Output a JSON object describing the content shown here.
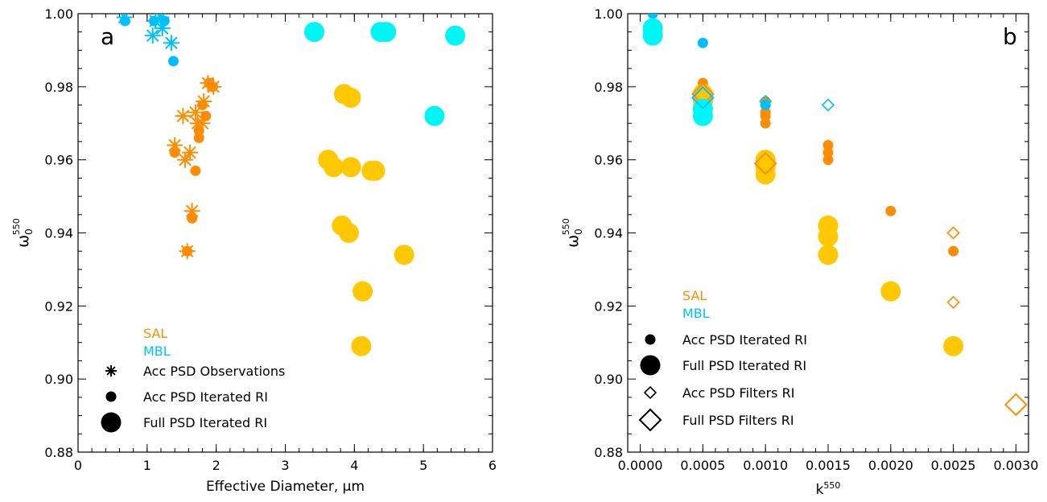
{
  "colors": {
    "sal": "#ff8c00",
    "mbl": "#00bfff",
    "full_sal": "#ffc800",
    "full_mbl": "#00f5f5",
    "axis": "#000000"
  },
  "chart_data": [
    {
      "type": "scatter",
      "panel": "a",
      "xlabel": "Effective Diameter, μm",
      "ylabel_main": "ω",
      "ylabel_sub": "0",
      "ylabel_sup": "550",
      "xlim": [
        0,
        6
      ],
      "ylim": [
        0.88,
        1.0
      ],
      "xticks": [
        "0",
        "1",
        "2",
        "3",
        "4",
        "5",
        "6"
      ],
      "yticks": [
        "0.88",
        "0.90",
        "0.92",
        "0.94",
        "0.96",
        "0.98",
        "1.00"
      ],
      "legend_groups": [
        "SAL",
        "MBL"
      ],
      "legend_markers": [
        "Acc PSD Observations",
        "Acc PSD Iterated RI",
        "Full PSD Iterated RI"
      ],
      "series": [
        {
          "group": "SAL",
          "marker": "Acc PSD Observations",
          "points": [
            [
              1.4,
              0.964
            ],
            [
              1.52,
              0.972
            ],
            [
              1.55,
              0.96
            ],
            [
              1.62,
              0.962
            ],
            [
              1.7,
              0.973
            ],
            [
              1.73,
              0.97
            ],
            [
              1.8,
              0.97
            ],
            [
              1.82,
              0.976
            ],
            [
              1.88,
              0.981
            ],
            [
              1.96,
              0.98
            ],
            [
              1.65,
              0.946
            ],
            [
              1.58,
              0.935
            ]
          ]
        },
        {
          "group": "SAL",
          "marker": "Acc PSD Iterated RI",
          "points": [
            [
              1.4,
              0.962
            ],
            [
              1.7,
              0.957
            ],
            [
              1.65,
              0.944
            ],
            [
              1.58,
              0.935
            ],
            [
              1.75,
              0.968
            ],
            [
              1.75,
              0.966
            ],
            [
              1.85,
              0.972
            ],
            [
              1.9,
              0.981
            ],
            [
              1.95,
              0.98
            ],
            [
              1.8,
              0.975
            ]
          ]
        },
        {
          "group": "SAL",
          "marker": "Full PSD Iterated RI",
          "points": [
            [
              3.85,
              0.978
            ],
            [
              3.95,
              0.977
            ],
            [
              3.62,
              0.96
            ],
            [
              3.7,
              0.958
            ],
            [
              3.95,
              0.958
            ],
            [
              4.25,
              0.957
            ],
            [
              4.3,
              0.957
            ],
            [
              3.82,
              0.942
            ],
            [
              3.92,
              0.94
            ],
            [
              4.72,
              0.934
            ],
            [
              4.12,
              0.924
            ],
            [
              4.1,
              0.909
            ]
          ]
        },
        {
          "group": "MBL",
          "marker": "Acc PSD Observations",
          "points": [
            [
              0.67,
              0.999
            ],
            [
              1.08,
              0.994
            ],
            [
              1.12,
              0.998
            ],
            [
              1.2,
              0.999
            ],
            [
              1.22,
              0.996
            ],
            [
              1.35,
              0.992
            ]
          ]
        },
        {
          "group": "MBL",
          "marker": "Acc PSD Iterated RI",
          "points": [
            [
              0.68,
              0.998
            ],
            [
              1.1,
              0.998
            ],
            [
              1.25,
              0.998
            ],
            [
              1.38,
              0.987
            ]
          ]
        },
        {
          "group": "MBL",
          "marker": "Full PSD Iterated RI",
          "points": [
            [
              3.42,
              0.995
            ],
            [
              4.38,
              0.995
            ],
            [
              4.46,
              0.995
            ],
            [
              5.46,
              0.994
            ],
            [
              5.16,
              0.972
            ]
          ]
        }
      ]
    },
    {
      "type": "scatter",
      "panel": "b",
      "xlabel_main": "k",
      "xlabel_sup": "550",
      "ylabel_main": "ω",
      "ylabel_sub": "0",
      "ylabel_sup": "550",
      "xlim": [
        -0.0001,
        0.0031
      ],
      "ylim": [
        0.88,
        1.0
      ],
      "xticks": [
        "0.0000",
        "0.0005",
        "0.0010",
        "0.0015",
        "0.0020",
        "0.0025",
        "0.0030"
      ],
      "yticks": [
        "0.88",
        "0.90",
        "0.92",
        "0.94",
        "0.96",
        "0.98",
        "1.00"
      ],
      "legend_groups": [
        "SAL",
        "MBL"
      ],
      "legend_markers": [
        "Acc PSD Iterated RI",
        "Full PSD Iterated RI",
        "Acc PSD Filters RI",
        "Full PSD Filters RI"
      ],
      "series": [
        {
          "group": "SAL",
          "marker": "Acc PSD Iterated RI",
          "points": [
            [
              0.0005,
              0.981
            ],
            [
              0.0005,
              0.979
            ],
            [
              0.001,
              0.976
            ],
            [
              0.001,
              0.973
            ],
            [
              0.001,
              0.972
            ],
            [
              0.001,
              0.97
            ],
            [
              0.0015,
              0.964
            ],
            [
              0.0015,
              0.962
            ],
            [
              0.0015,
              0.96
            ],
            [
              0.002,
              0.946
            ],
            [
              0.0025,
              0.935
            ]
          ]
        },
        {
          "group": "SAL",
          "marker": "Full PSD Iterated RI",
          "points": [
            [
              0.0005,
              0.978
            ],
            [
              0.0005,
              0.976
            ],
            [
              0.001,
              0.96
            ],
            [
              0.001,
              0.958
            ],
            [
              0.001,
              0.956
            ],
            [
              0.0015,
              0.942
            ],
            [
              0.0015,
              0.939
            ],
            [
              0.0015,
              0.934
            ],
            [
              0.002,
              0.924
            ],
            [
              0.0025,
              0.909
            ]
          ]
        },
        {
          "group": "SAL",
          "marker": "Acc PSD Filters RI",
          "points": [
            [
              0.0025,
              0.94
            ],
            [
              0.0025,
              0.921
            ]
          ]
        },
        {
          "group": "SAL",
          "marker": "Full PSD Filters RI",
          "points": [
            [
              0.0005,
              0.978
            ],
            [
              0.001,
              0.959
            ],
            [
              0.003,
              0.893
            ]
          ]
        },
        {
          "group": "MBL",
          "marker": "Acc PSD Iterated RI",
          "points": [
            [
              0.0001,
              1.0
            ],
            [
              0.0005,
              0.992
            ],
            [
              0.001,
              0.975
            ]
          ]
        },
        {
          "group": "MBL",
          "marker": "Full PSD Iterated RI",
          "points": [
            [
              0.0001,
              0.996
            ],
            [
              0.0001,
              0.994
            ],
            [
              0.0005,
              0.974
            ],
            [
              0.0005,
              0.972
            ]
          ]
        },
        {
          "group": "MBL",
          "marker": "Acc PSD Filters RI",
          "points": [
            [
              0.001,
              0.976
            ],
            [
              0.0015,
              0.975
            ]
          ]
        },
        {
          "group": "MBL",
          "marker": "Full PSD Filters RI",
          "points": [
            [
              0.0005,
              0.977
            ]
          ]
        }
      ]
    }
  ]
}
